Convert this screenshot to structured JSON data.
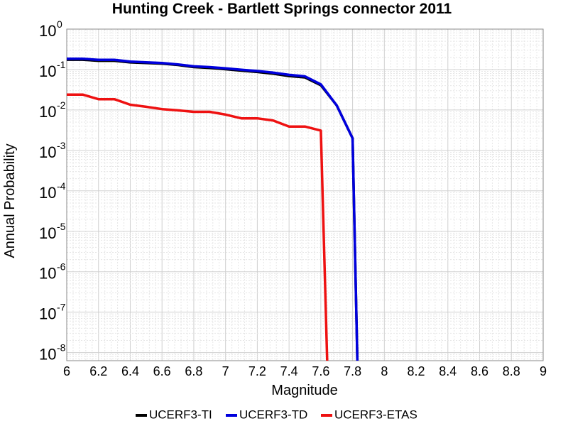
{
  "chart_data": {
    "type": "line",
    "title": "Hunting Creek - Bartlett Springs connector 2011",
    "xlabel": "Magnitude",
    "ylabel": "Annual Probability",
    "xlim": [
      6,
      9
    ],
    "ylim_exponent": [
      -8.2,
      0
    ],
    "y_scale": "log",
    "x_ticks": [
      "6",
      "6.2",
      "6.4",
      "6.6",
      "6.8",
      "7",
      "7.2",
      "7.4",
      "7.6",
      "7.8",
      "8",
      "8.2",
      "8.4",
      "8.6",
      "8.8",
      "9"
    ],
    "y_ticks": [
      {
        "base": "10",
        "exp": "0"
      },
      {
        "base": "10",
        "exp": "-1"
      },
      {
        "base": "10",
        "exp": "-2"
      },
      {
        "base": "10",
        "exp": "-3"
      },
      {
        "base": "10",
        "exp": "-4"
      },
      {
        "base": "10",
        "exp": "-5"
      },
      {
        "base": "10",
        "exp": "-6"
      },
      {
        "base": "10",
        "exp": "-7"
      },
      {
        "base": "10",
        "exp": "-8"
      }
    ],
    "grid": true,
    "legend_position": "bottom",
    "series": [
      {
        "name": "UCERF3-TI",
        "color": "#000000",
        "points": [
          [
            6.0,
            0.175
          ],
          [
            6.1,
            0.175
          ],
          [
            6.2,
            0.165
          ],
          [
            6.3,
            0.165
          ],
          [
            6.4,
            0.15
          ],
          [
            6.5,
            0.145
          ],
          [
            6.6,
            0.14
          ],
          [
            6.7,
            0.13
          ],
          [
            6.8,
            0.115
          ],
          [
            6.9,
            0.11
          ],
          [
            7.0,
            0.102
          ],
          [
            7.1,
            0.094
          ],
          [
            7.2,
            0.087
          ],
          [
            7.3,
            0.079
          ],
          [
            7.4,
            0.069
          ],
          [
            7.5,
            0.064
          ],
          [
            7.6,
            0.041
          ],
          [
            7.7,
            0.013
          ],
          [
            7.8,
            0.002
          ],
          [
            7.83,
            6.3e-09
          ]
        ]
      },
      {
        "name": "UCERF3-TD",
        "color": "#0000dd",
        "points": [
          [
            6.0,
            0.185
          ],
          [
            6.1,
            0.185
          ],
          [
            6.2,
            0.174
          ],
          [
            6.3,
            0.174
          ],
          [
            6.4,
            0.157
          ],
          [
            6.5,
            0.151
          ],
          [
            6.6,
            0.145
          ],
          [
            6.7,
            0.134
          ],
          [
            6.8,
            0.12
          ],
          [
            6.9,
            0.115
          ],
          [
            7.0,
            0.107
          ],
          [
            7.1,
            0.099
          ],
          [
            7.2,
            0.092
          ],
          [
            7.3,
            0.084
          ],
          [
            7.4,
            0.074
          ],
          [
            7.5,
            0.068
          ],
          [
            7.6,
            0.043
          ],
          [
            7.7,
            0.013
          ],
          [
            7.8,
            0.002
          ],
          [
            7.83,
            6.3e-09
          ]
        ]
      },
      {
        "name": "UCERF3-ETAS",
        "color": "#ee1111",
        "points": [
          [
            6.0,
            0.024
          ],
          [
            6.1,
            0.024
          ],
          [
            6.2,
            0.0185
          ],
          [
            6.3,
            0.0185
          ],
          [
            6.4,
            0.0135
          ],
          [
            6.5,
            0.012
          ],
          [
            6.6,
            0.0105
          ],
          [
            6.7,
            0.0098
          ],
          [
            6.8,
            0.009
          ],
          [
            6.9,
            0.009
          ],
          [
            7.0,
            0.0077
          ],
          [
            7.1,
            0.0062
          ],
          [
            7.2,
            0.0062
          ],
          [
            7.3,
            0.0055
          ],
          [
            7.4,
            0.0039
          ],
          [
            7.5,
            0.0039
          ],
          [
            7.6,
            0.0031
          ],
          [
            7.64,
            6.3e-09
          ]
        ]
      }
    ]
  }
}
